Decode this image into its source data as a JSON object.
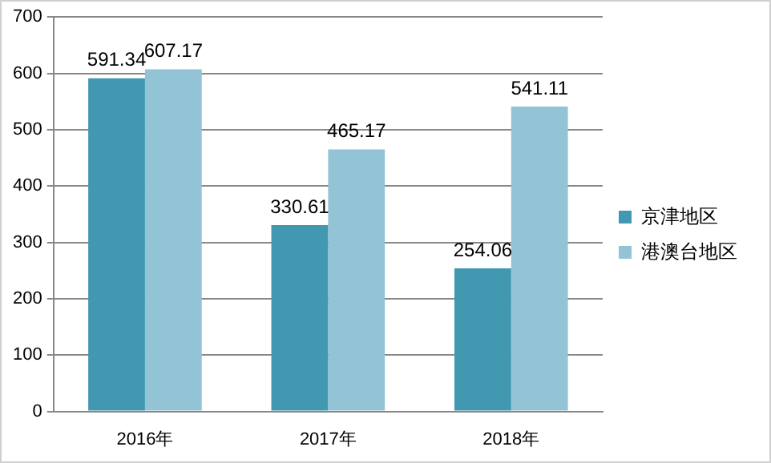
{
  "chart_data": {
    "type": "bar",
    "categories": [
      "2016年",
      "2017年",
      "2018年"
    ],
    "series": [
      {
        "name": "京津地区",
        "color": "#4198b0",
        "values": [
          591.34,
          330.61,
          254.06
        ]
      },
      {
        "name": "港澳台地区",
        "color": "#93c4d6",
        "values": [
          607.17,
          465.17,
          541.11
        ]
      }
    ],
    "ylim": [
      0,
      700
    ],
    "yticks": [
      0,
      100,
      200,
      300,
      400,
      500,
      600,
      700
    ],
    "grid": "y",
    "legend": "right",
    "data_labels": true
  }
}
